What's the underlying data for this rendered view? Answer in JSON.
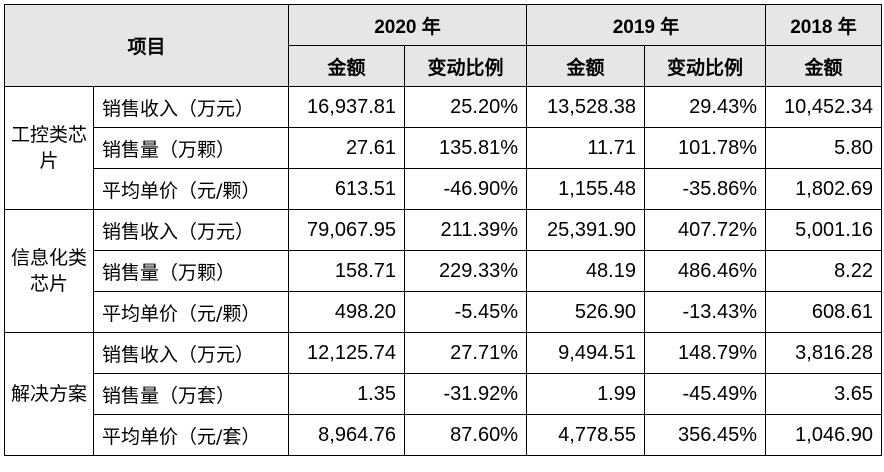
{
  "header": {
    "item_label": "项目",
    "years": [
      "2020 年",
      "2019 年",
      "2018 年"
    ],
    "amount_label": "金额",
    "change_label": "变动比例"
  },
  "groups": [
    {
      "category": "工控类芯片",
      "rows": [
        {
          "metric": "销售收入（万元）",
          "v2020": "16,937.81",
          "c2020": "25.20%",
          "v2019": "13,528.38",
          "c2019": "29.43%",
          "v2018": "10,452.34"
        },
        {
          "metric": "销售量（万颗）",
          "v2020": "27.61",
          "c2020": "135.81%",
          "v2019": "11.71",
          "c2019": "101.78%",
          "v2018": "5.80"
        },
        {
          "metric": "平均单价（元/颗）",
          "v2020": "613.51",
          "c2020": "-46.90%",
          "v2019": "1,155.48",
          "c2019": "-35.86%",
          "v2018": "1,802.69"
        }
      ]
    },
    {
      "category": "信息化类芯片",
      "rows": [
        {
          "metric": "销售收入（万元）",
          "v2020": "79,067.95",
          "c2020": "211.39%",
          "v2019": "25,391.90",
          "c2019": "407.72%",
          "v2018": "5,001.16"
        },
        {
          "metric": "销售量（万颗）",
          "v2020": "158.71",
          "c2020": "229.33%",
          "v2019": "48.19",
          "c2019": "486.46%",
          "v2018": "8.22"
        },
        {
          "metric": "平均单价（元/颗）",
          "v2020": "498.20",
          "c2020": "-5.45%",
          "v2019": "526.90",
          "c2019": "-13.43%",
          "v2018": "608.61"
        }
      ]
    },
    {
      "category": "解决方案",
      "rows": [
        {
          "metric": "销售收入（万元）",
          "v2020": "12,125.74",
          "c2020": "27.71%",
          "v2019": "9,494.51",
          "c2019": "148.79%",
          "v2018": "3,816.28"
        },
        {
          "metric": "销售量（万套）",
          "v2020": "1.35",
          "c2020": "-31.92%",
          "v2019": "1.99",
          "c2019": "-45.49%",
          "v2018": "3.65"
        },
        {
          "metric": "平均单价（元/套）",
          "v2020": "8,964.76",
          "c2020": "87.60%",
          "v2019": "4,778.55",
          "c2019": "356.45%",
          "v2018": "1,046.90"
        }
      ]
    }
  ]
}
